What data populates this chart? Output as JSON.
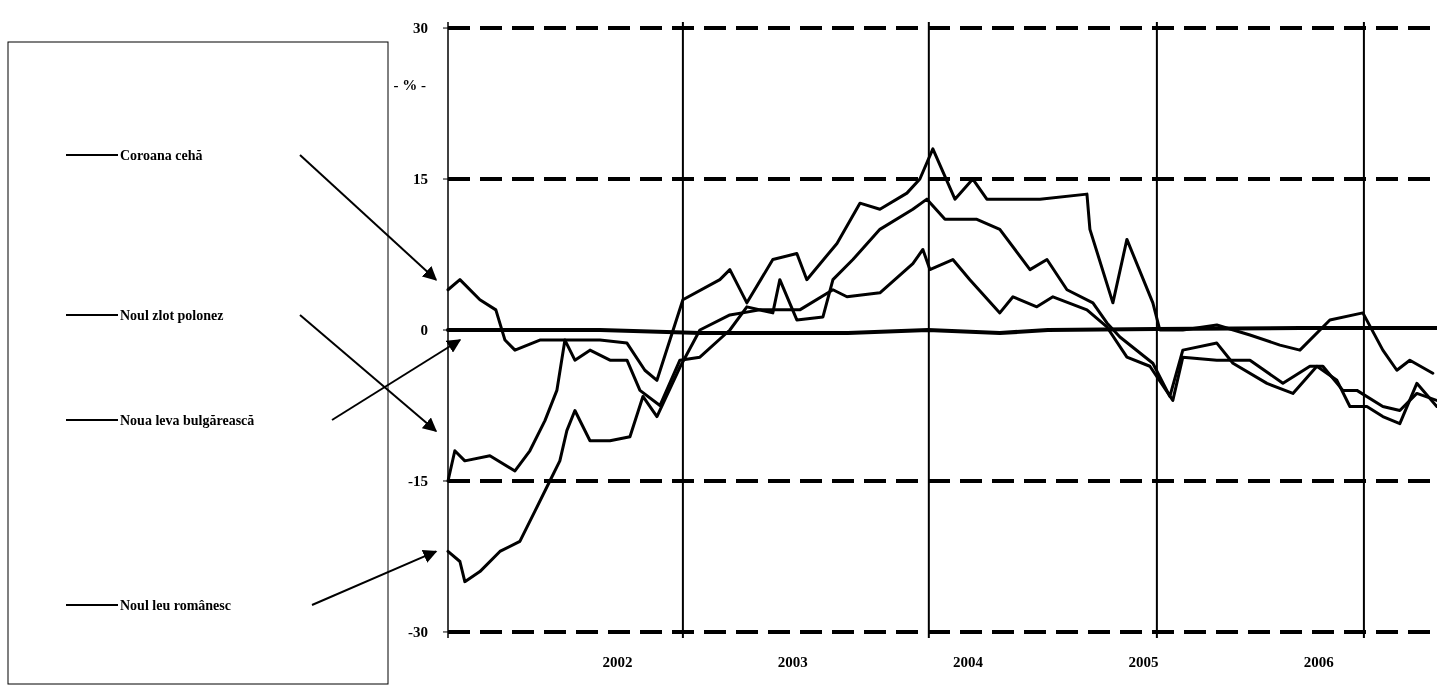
{
  "chart_data": {
    "type": "line",
    "ylabel": "- % -",
    "xlim": [
      2001.033,
      2006.675
    ],
    "ylim": [
      -30.6,
      30.6
    ],
    "yticks": [
      -30,
      -15,
      0,
      15,
      30
    ],
    "xticks": [
      2002,
      2003,
      2004,
      2005,
      2006
    ],
    "grid": false,
    "legend": "left",
    "line_style": "solid",
    "marker": "none",
    "ref_lines": [
      {
        "axis": "y",
        "value": 30,
        "line_style": "dashed"
      },
      {
        "axis": "y",
        "value": 15,
        "line_style": "dashed"
      },
      {
        "axis": "y",
        "value": -15,
        "line_style": "dashed"
      },
      {
        "axis": "y",
        "value": -30,
        "line_style": "dashed"
      },
      {
        "axis": "x",
        "value": 2002.373,
        "line_style": "solid"
      },
      {
        "axis": "x",
        "value": 2003.776,
        "line_style": "solid"
      },
      {
        "axis": "x",
        "value": 2005.077,
        "line_style": "solid"
      },
      {
        "axis": "x",
        "value": 2006.258,
        "line_style": "solid"
      }
    ],
    "series": [
      {
        "name": "Coroana cehă",
        "color": "#000000",
        "x": [
          2001.033,
          2001.101,
          2001.215,
          2001.306,
          2001.358,
          2001.415,
          2001.557,
          2001.757,
          2001.9,
          2002.054,
          2002.156,
          2002.225,
          2002.373,
          2002.584,
          2002.641,
          2002.738,
          2002.886,
          2003.023,
          2003.08,
          2003.252,
          2003.383,
          2003.497,
          2003.651,
          2003.725,
          2003.799,
          2003.925,
          2004.027,
          2004.107,
          2004.41,
          2004.678,
          2004.695,
          2004.826,
          2004.906,
          2005.054,
          2005.094,
          2005.225,
          2005.419,
          2005.608,
          2005.779,
          2005.893,
          2006.064,
          2006.252,
          2006.366,
          2006.446,
          2006.52,
          2006.651
        ],
        "values": [
          4,
          5,
          3,
          2,
          -1,
          -2,
          -1,
          -1,
          -1,
          -1.3,
          -4,
          -5,
          3,
          5,
          6,
          2.7,
          7,
          7.6,
          5,
          8.6,
          12.6,
          12,
          13.6,
          15,
          18,
          13,
          15,
          13,
          13,
          13.5,
          10,
          2.7,
          9,
          2.7,
          0,
          0,
          0.5,
          -0.5,
          -1.5,
          -2,
          1,
          1.7,
          -2,
          -4,
          -3,
          -4.3
        ]
      },
      {
        "name": "Noul zlot polonez",
        "color": "#000000",
        "x": [
          2001.033,
          2001.072,
          2001.129,
          2001.272,
          2001.415,
          2001.5,
          2001.586,
          2001.654,
          2001.7,
          2001.757,
          2001.843,
          2001.957,
          2002.054,
          2002.128,
          2002.242,
          2002.356,
          2002.47,
          2002.641,
          2002.738,
          2002.886,
          2002.926,
          2003.023,
          2003.172,
          2003.229,
          2003.343,
          2003.497,
          2003.685,
          2003.765,
          2003.868,
          2004.05,
          2004.181,
          2004.353,
          2004.45,
          2004.564,
          2004.712,
          2004.792,
          2004.866,
          2005.054,
          2005.151,
          2005.225,
          2005.419,
          2005.511,
          2005.705,
          2005.853,
          2005.99,
          2006.104,
          2006.178,
          2006.275,
          2006.366,
          2006.463,
          2006.56,
          2006.674
        ],
        "values": [
          -15,
          -12,
          -13,
          -12.5,
          -14,
          -12,
          -9,
          -6,
          -1,
          -3,
          -2,
          -3,
          -3,
          -6,
          -7.5,
          -3,
          -2.7,
          0,
          2.3,
          1.7,
          5,
          1,
          1.3,
          5,
          7,
          10,
          12,
          13,
          11,
          11,
          10,
          6,
          7,
          4,
          2.7,
          0.7,
          -0.7,
          -3.3,
          -6.6,
          -2,
          -1.3,
          -3.3,
          -5.3,
          -6.3,
          -3.6,
          -5,
          -7.6,
          -7.6,
          -8.6,
          -9.3,
          -5.3,
          -7.6
        ]
      },
      {
        "name": "Noua leva bulgărească",
        "color": "#000000",
        "x": [
          2001.033,
          2001.9,
          2002.47,
          2003.314,
          2003.771,
          2004.181,
          2004.455,
          2005.071,
          2005.893,
          2006.674
        ],
        "values": [
          0,
          0,
          -0.3,
          -0.3,
          0,
          -0.3,
          0,
          0.1,
          0.2,
          0.2
        ]
      },
      {
        "name": "Noul leu românesc",
        "color": "#000000",
        "x": [
          2001.033,
          2001.101,
          2001.129,
          2001.215,
          2001.329,
          2001.443,
          2001.529,
          2001.614,
          2001.671,
          2001.711,
          2001.757,
          2001.843,
          2001.957,
          2002.071,
          2002.145,
          2002.225,
          2002.356,
          2002.47,
          2002.641,
          2002.812,
          2003.04,
          2003.229,
          2003.309,
          2003.497,
          2003.685,
          2003.742,
          2003.782,
          2003.913,
          2004.01,
          2004.181,
          2004.256,
          2004.392,
          2004.484,
          2004.678,
          2004.792,
          2004.906,
          2005.037,
          2005.168,
          2005.225,
          2005.419,
          2005.608,
          2005.796,
          2005.95,
          2006.024,
          2006.138,
          2006.218,
          2006.366,
          2006.463,
          2006.56,
          2006.674
        ],
        "values": [
          -22,
          -23,
          -25,
          -24,
          -22,
          -21,
          -18,
          -15,
          -13,
          -10,
          -8,
          -11,
          -11,
          -10.6,
          -6.6,
          -8.6,
          -3.7,
          0,
          1.5,
          2,
          2,
          4,
          3.3,
          3.7,
          6.6,
          8,
          6,
          7,
          5,
          1.7,
          3.3,
          2.3,
          3.3,
          2,
          0.3,
          -2.7,
          -3.6,
          -7,
          -2.7,
          -3,
          -3,
          -5.3,
          -3.6,
          -3.6,
          -6,
          -6,
          -7.6,
          -8,
          -6.3,
          -7
        ]
      }
    ]
  }
}
